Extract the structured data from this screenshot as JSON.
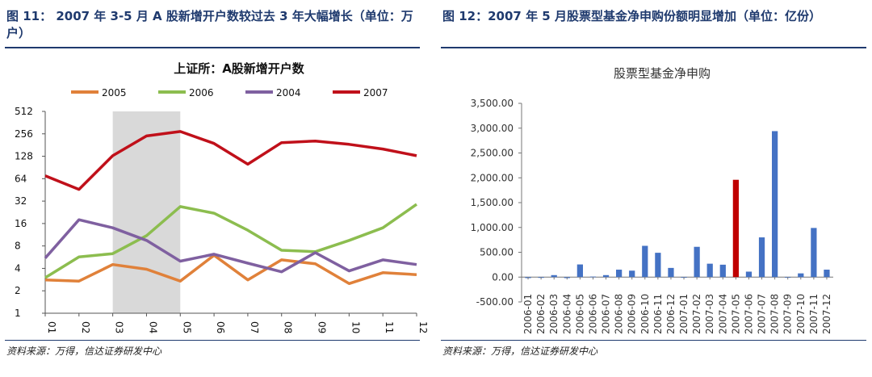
{
  "figure1": {
    "title": "图 11：  2007 年 3-5 月 A 股新增开户数较过去 3 年大幅增长（单位：万户）",
    "source": "资料来源：万得，信达证券研发中心"
  },
  "figure2": {
    "title": "图 12：2007 年 5 月股票型基金净申购份额明显增加（单位：亿份）",
    "source": "资料来源：万得，信达证券研发中心"
  },
  "chart_data": [
    {
      "type": "line",
      "title": "上证所：A股新增开户数",
      "yscale": "log2",
      "ylim": [
        1,
        512
      ],
      "yticks": [
        "1",
        "2",
        "4",
        "8",
        "16",
        "32",
        "64",
        "128",
        "256",
        "512"
      ],
      "categories": [
        "01",
        "02",
        "03",
        "04",
        "05",
        "06",
        "07",
        "08",
        "09",
        "10",
        "11",
        "12"
      ],
      "highlight_range": [
        "03",
        "05"
      ],
      "legend_position": "top",
      "series": [
        {
          "name": "2005",
          "color": "#e0813a",
          "values": [
            2.8,
            2.7,
            4.5,
            3.9,
            2.7,
            6.0,
            2.8,
            5.2,
            4.6,
            2.5,
            3.5,
            3.3
          ]
        },
        {
          "name": "2006",
          "color": "#8cbd4f",
          "values": [
            3.0,
            5.7,
            6.3,
            11.0,
            27.0,
            22.0,
            13.0,
            7.0,
            6.7,
            9.5,
            14.0,
            29.0
          ]
        },
        {
          "name": "2004",
          "color": "#7f60a0",
          "values": [
            5.5,
            18.0,
            14.0,
            9.5,
            5.0,
            6.2,
            4.7,
            3.6,
            6.5,
            3.7,
            5.2,
            4.5
          ]
        },
        {
          "name": "2007",
          "color": "#c0101a",
          "values": [
            70,
            46,
            130,
            240,
            275,
            190,
            100,
            195,
            205,
            185,
            160,
            130
          ]
        }
      ]
    },
    {
      "type": "bar",
      "title": "股票型基金净申购",
      "ylim": [
        -500,
        3500
      ],
      "yticks": [
        "-500.00",
        "0.00",
        "500.00",
        "1,000.00",
        "1,500.00",
        "2,000.00",
        "2,500.00",
        "3,000.00",
        "3,500.00"
      ],
      "categories": [
        "2006-01",
        "2006-02",
        "2006-03",
        "2006-04",
        "2006-05",
        "2006-06",
        "2006-07",
        "2006-08",
        "2006-09",
        "2006-10",
        "2006-11",
        "2006-12",
        "2007-01",
        "2007-02",
        "2007-03",
        "2007-04",
        "2007-05",
        "2007-06",
        "2007-07",
        "2007-08",
        "2007-09",
        "2007-10",
        "2007-11",
        "2007-12"
      ],
      "highlight_category": "2007-05",
      "colors": {
        "normal": "#4472c4",
        "highlight": "#c00000"
      },
      "values": [
        -20,
        -15,
        40,
        -20,
        255,
        10,
        40,
        150,
        130,
        630,
        490,
        185,
        -10,
        610,
        270,
        250,
        1960,
        110,
        800,
        2940,
        -5,
        75,
        990,
        150
      ]
    }
  ]
}
